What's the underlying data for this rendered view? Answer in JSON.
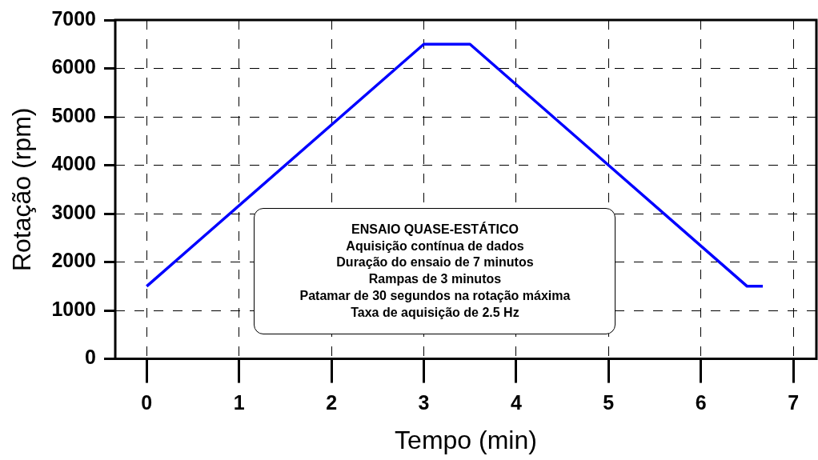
{
  "chart_data": {
    "type": "line",
    "xlabel": "Tempo (min)",
    "ylabel": "Rotação (rpm)",
    "x": [
      0,
      3,
      3.5,
      6.5,
      6.67
    ],
    "series": [
      {
        "color": "#0000ff",
        "values": [
          1500,
          6500,
          6500,
          1500,
          1500
        ]
      }
    ],
    "xlim": [
      -0.34,
      7.25
    ],
    "xticks": [
      0,
      1,
      2,
      3,
      4,
      5,
      6,
      7
    ],
    "ylim": [
      0,
      7000
    ],
    "yticks": [
      0,
      1000,
      2000,
      3000,
      4000,
      5000,
      6000,
      7000
    ],
    "grid": true,
    "legend": false,
    "marker": "none",
    "line_style": "solid",
    "annotations": [
      "ENSAIO QUASE-ESTÁTICO",
      "Aquisição contínua de dados",
      "Duração do ensaio de 7 minutos",
      "Rampas de 3 minutos",
      "Patamar de 30 segundos na rotação máxima",
      "Taxa de aquisição de 2.5 Hz"
    ]
  }
}
